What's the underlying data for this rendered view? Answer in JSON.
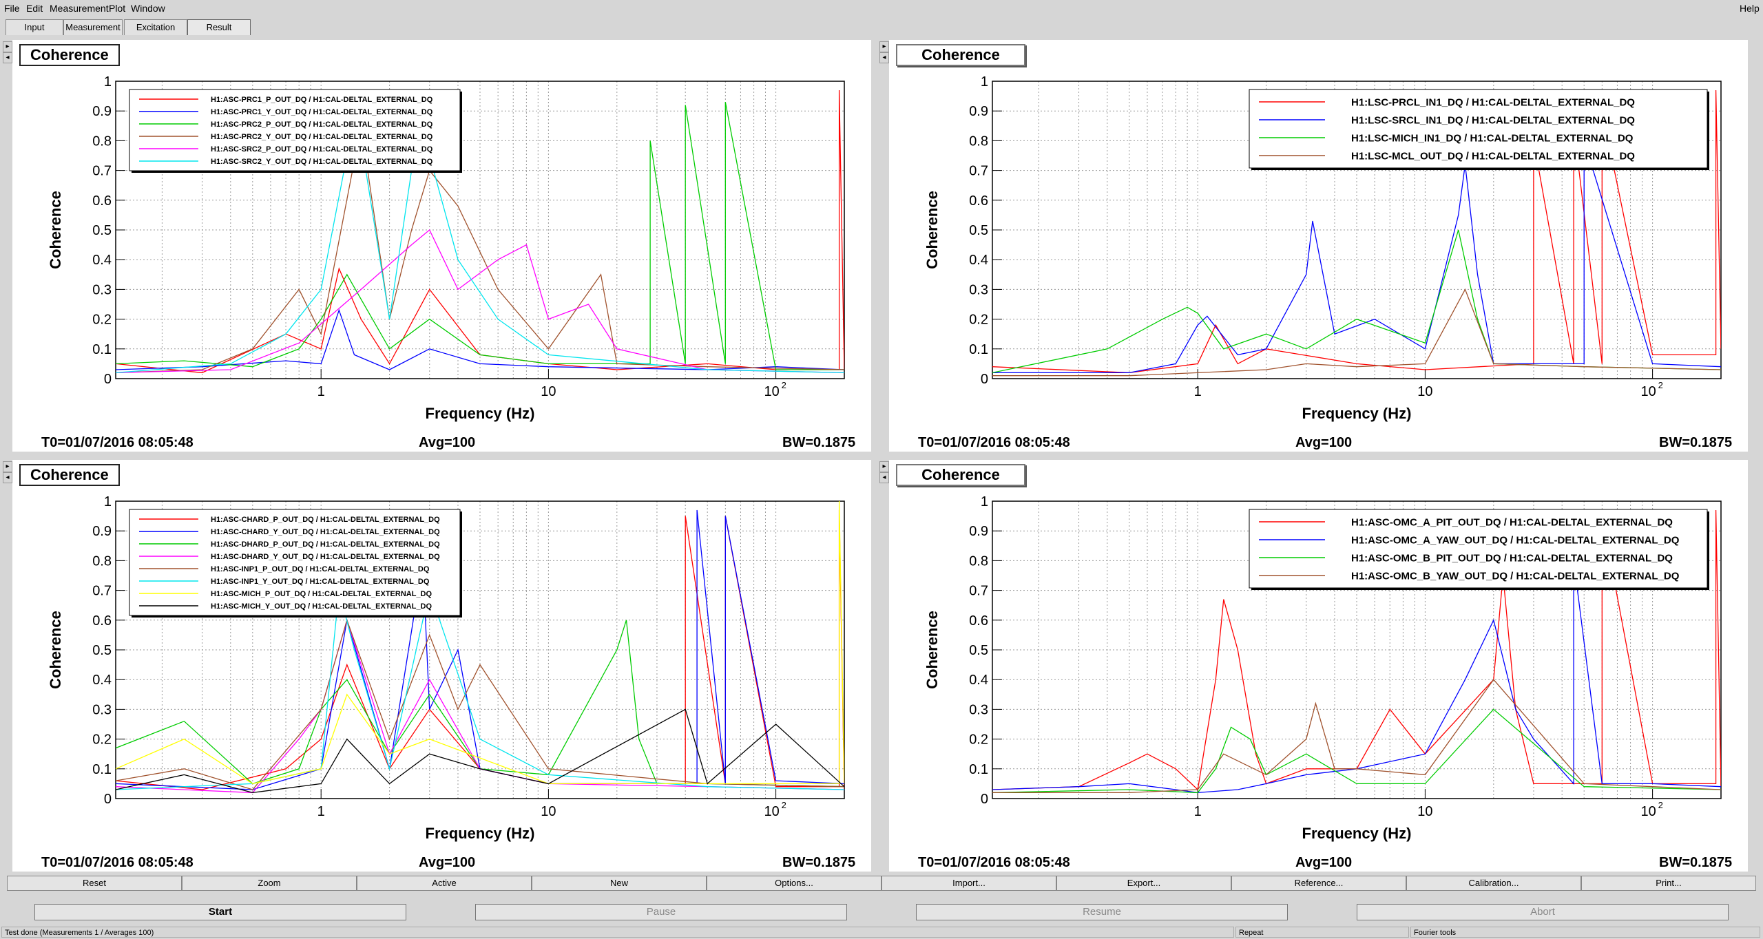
{
  "menu": {
    "file": "File",
    "edit": "Edit",
    "measurement": "Measurement",
    "plot": "Plot",
    "window": "Window",
    "help": "Help"
  },
  "tabs": [
    "Input",
    "Measurement",
    "Excitation",
    "Result"
  ],
  "common": {
    "title": "Coherence",
    "xlabel": "Frequency (Hz)",
    "ylabel": "Coherence",
    "t0": "T0=01/07/2016 08:05:48",
    "avg": "Avg=100",
    "bw": "BW=0.1875"
  },
  "colors": {
    "red": "#ff0000",
    "blue": "#0000ff",
    "green": "#00cc00",
    "brown": "#a0522d",
    "magenta": "#ff00ff",
    "cyan": "#00e5ee",
    "yellow": "#ffff00",
    "black": "#000000"
  },
  "chart_data": [
    {
      "type": "line",
      "title": "Coherence",
      "xlabel": "Frequency (Hz)",
      "ylabel": "Coherence",
      "xscale": "log",
      "xlim": [
        0.125,
        200
      ],
      "ylim": [
        0,
        1
      ],
      "grid": true,
      "legend": "top-left",
      "series": [
        {
          "name": "H1:ASC-PRC1_P_OUT_DQ / H1:CAL-DELTAL_EXTERNAL_DQ",
          "color": "red",
          "x": [
            0.125,
            0.3,
            0.7,
            1.0,
            1.2,
            1.5,
            2.0,
            3.0,
            5.0,
            10,
            20,
            50,
            100,
            190,
            190,
            200
          ],
          "y": [
            0.05,
            0.02,
            0.15,
            0.1,
            0.37,
            0.2,
            0.05,
            0.3,
            0.08,
            0.05,
            0.03,
            0.05,
            0.03,
            0.03,
            0.97,
            0.03
          ]
        },
        {
          "name": "H1:ASC-PRC1_Y_OUT_DQ / H1:CAL-DELTAL_EXTERNAL_DQ",
          "color": "blue",
          "x": [
            0.125,
            0.3,
            0.7,
            1.0,
            1.2,
            1.4,
            2.0,
            3.0,
            5.0,
            10,
            50,
            100,
            200
          ],
          "y": [
            0.03,
            0.04,
            0.06,
            0.05,
            0.23,
            0.08,
            0.03,
            0.1,
            0.05,
            0.04,
            0.03,
            0.04,
            0.03
          ]
        },
        {
          "name": "H1:ASC-PRC2_P_OUT_DQ / H1:CAL-DELTAL_EXTERNAL_DQ",
          "color": "green",
          "x": [
            0.125,
            0.25,
            0.5,
            0.8,
            1.0,
            1.3,
            2.0,
            3.0,
            5.0,
            10,
            28,
            28,
            40,
            40,
            60,
            60,
            100,
            200
          ],
          "y": [
            0.05,
            0.06,
            0.04,
            0.1,
            0.2,
            0.35,
            0.1,
            0.2,
            0.08,
            0.05,
            0.05,
            0.8,
            0.05,
            0.92,
            0.05,
            0.93,
            0.03,
            0.03
          ]
        },
        {
          "name": "H1:ASC-PRC2_Y_OUT_DQ / H1:CAL-DELTAL_EXTERNAL_DQ",
          "color": "brown",
          "x": [
            0.125,
            0.3,
            0.5,
            0.8,
            1.0,
            1.5,
            2.0,
            2.5,
            3.0,
            4.0,
            6.0,
            10,
            17,
            20,
            50,
            200
          ],
          "y": [
            0.02,
            0.03,
            0.1,
            0.3,
            0.15,
            0.85,
            0.2,
            0.5,
            0.7,
            0.58,
            0.3,
            0.1,
            0.35,
            0.05,
            0.04,
            0.03
          ]
        },
        {
          "name": "H1:ASC-SRC2_P_OUT_DQ / H1:CAL-DELTAL_EXTERNAL_DQ",
          "color": "magenta",
          "x": [
            0.125,
            0.4,
            0.8,
            1.5,
            2.5,
            3.0,
            4.0,
            6.0,
            8.0,
            10,
            15,
            20,
            50,
            200
          ],
          "y": [
            0.02,
            0.03,
            0.12,
            0.3,
            0.45,
            0.5,
            0.3,
            0.4,
            0.45,
            0.2,
            0.25,
            0.1,
            0.03,
            0.02
          ]
        },
        {
          "name": "H1:ASC-SRC2_Y_OUT_DQ / H1:CAL-DELTAL_EXTERNAL_DQ",
          "color": "cyan",
          "x": [
            0.125,
            0.4,
            0.7,
            1.0,
            1.3,
            1.5,
            2.0,
            2.5,
            3.0,
            4.0,
            6.0,
            10,
            50,
            200
          ],
          "y": [
            0.02,
            0.05,
            0.15,
            0.3,
            0.75,
            0.8,
            0.2,
            0.7,
            0.75,
            0.4,
            0.2,
            0.08,
            0.03,
            0.02
          ]
        }
      ]
    },
    {
      "type": "line",
      "title": "Coherence",
      "xlabel": "Frequency (Hz)",
      "ylabel": "Coherence",
      "xscale": "log",
      "xlim": [
        0.125,
        200
      ],
      "ylim": [
        0,
        1
      ],
      "grid": true,
      "legend": "top-right",
      "series": [
        {
          "name": "H1:LSC-PRCL_IN1_DQ / H1:CAL-DELTAL_EXTERNAL_DQ",
          "color": "red",
          "x": [
            0.125,
            0.5,
            1.0,
            1.2,
            1.5,
            2.0,
            5.0,
            10,
            30,
            30,
            45,
            45,
            60,
            60,
            100,
            190,
            190,
            200
          ],
          "y": [
            0.04,
            0.02,
            0.05,
            0.18,
            0.05,
            0.1,
            0.05,
            0.03,
            0.05,
            0.8,
            0.05,
            0.85,
            0.05,
            0.9,
            0.08,
            0.08,
            0.97,
            0.1
          ]
        },
        {
          "name": "H1:LSC-SRCL_IN1_DQ / H1:CAL-DELTAL_EXTERNAL_DQ",
          "color": "blue",
          "x": [
            0.125,
            0.5,
            0.8,
            1.0,
            1.1,
            1.5,
            2.0,
            3.0,
            3.2,
            4.0,
            6.0,
            10,
            14,
            15,
            17,
            20,
            50,
            50,
            100,
            200
          ],
          "y": [
            0.02,
            0.02,
            0.05,
            0.18,
            0.21,
            0.08,
            0.1,
            0.35,
            0.53,
            0.15,
            0.2,
            0.1,
            0.55,
            0.72,
            0.35,
            0.05,
            0.05,
            0.8,
            0.05,
            0.04
          ]
        },
        {
          "name": "H1:LSC-MICH_IN1_DQ / H1:CAL-DELTAL_EXTERNAL_DQ",
          "color": "green",
          "x": [
            0.125,
            0.4,
            0.7,
            0.9,
            1.0,
            1.3,
            2.0,
            3.0,
            5.0,
            10,
            14,
            17,
            20,
            50,
            200
          ],
          "y": [
            0.02,
            0.1,
            0.2,
            0.24,
            0.22,
            0.1,
            0.15,
            0.1,
            0.2,
            0.12,
            0.5,
            0.2,
            0.05,
            0.04,
            0.03
          ]
        },
        {
          "name": "H1:LSC-MCL_OUT_DQ / H1:CAL-DELTAL_EXTERNAL_DQ",
          "color": "brown",
          "x": [
            0.125,
            0.5,
            1.0,
            2.0,
            3.0,
            5.0,
            10,
            15,
            20,
            50,
            200
          ],
          "y": [
            0.01,
            0.01,
            0.02,
            0.03,
            0.05,
            0.04,
            0.05,
            0.3,
            0.05,
            0.04,
            0.03
          ]
        }
      ]
    },
    {
      "type": "line",
      "title": "Coherence",
      "xlabel": "Frequency (Hz)",
      "ylabel": "Coherence",
      "xscale": "log",
      "xlim": [
        0.125,
        200
      ],
      "ylim": [
        0,
        1
      ],
      "grid": true,
      "legend": "top-left",
      "series": [
        {
          "name": "H1:ASC-CHARD_P_OUT_DQ / H1:CAL-DELTAL_EXTERNAL_DQ",
          "color": "red",
          "x": [
            0.125,
            0.3,
            0.7,
            1.0,
            1.3,
            2.0,
            3.0,
            5.0,
            10,
            40,
            40,
            60,
            60,
            100,
            190,
            190,
            200
          ],
          "y": [
            0.06,
            0.03,
            0.1,
            0.2,
            0.45,
            0.1,
            0.3,
            0.1,
            0.05,
            0.05,
            0.95,
            0.05,
            0.95,
            0.04,
            0.04,
            0.97,
            0.03
          ]
        },
        {
          "name": "H1:ASC-CHARD_Y_OUT_DQ / H1:CAL-DELTAL_EXTERNAL_DQ",
          "color": "blue",
          "x": [
            0.125,
            0.5,
            1.0,
            1.3,
            2.0,
            2.8,
            3.0,
            4.0,
            5.0,
            10,
            45,
            45,
            60,
            60,
            100,
            200
          ],
          "y": [
            0.05,
            0.03,
            0.1,
            0.6,
            0.1,
            0.8,
            0.3,
            0.5,
            0.1,
            0.05,
            0.05,
            0.97,
            0.05,
            0.95,
            0.06,
            0.05
          ]
        },
        {
          "name": "H1:ASC-DHARD_P_OUT_DQ / H1:CAL-DELTAL_EXTERNAL_DQ",
          "color": "green",
          "x": [
            0.125,
            0.25,
            0.5,
            0.8,
            1.0,
            1.3,
            2.0,
            3.0,
            5.0,
            10,
            20,
            22,
            25,
            30,
            50,
            200
          ],
          "y": [
            0.17,
            0.26,
            0.05,
            0.1,
            0.3,
            0.4,
            0.15,
            0.35,
            0.1,
            0.08,
            0.5,
            0.6,
            0.2,
            0.05,
            0.05,
            0.04
          ]
        },
        {
          "name": "H1:ASC-DHARD_Y_OUT_DQ / H1:CAL-DELTAL_EXTERNAL_DQ",
          "color": "magenta",
          "x": [
            0.125,
            0.5,
            0.8,
            1.0,
            1.3,
            2.0,
            3.0,
            5.0,
            10,
            50,
            200
          ],
          "y": [
            0.04,
            0.02,
            0.2,
            0.3,
            0.6,
            0.15,
            0.4,
            0.1,
            0.05,
            0.04,
            0.03
          ]
        },
        {
          "name": "H1:ASC-INP1_P_OUT_DQ / H1:CAL-DELTAL_EXTERNAL_DQ",
          "color": "brown",
          "x": [
            0.125,
            0.25,
            0.5,
            1.0,
            1.3,
            2.0,
            3.0,
            4.0,
            5.0,
            10,
            50,
            200
          ],
          "y": [
            0.06,
            0.1,
            0.03,
            0.3,
            0.6,
            0.2,
            0.55,
            0.3,
            0.45,
            0.1,
            0.05,
            0.04
          ]
        },
        {
          "name": "H1:ASC-INP1_Y_OUT_DQ / H1:CAL-DELTAL_EXTERNAL_DQ",
          "color": "cyan",
          "x": [
            0.125,
            0.5,
            1.0,
            1.2,
            1.4,
            2.0,
            3.0,
            5.0,
            10,
            50,
            200
          ],
          "y": [
            0.03,
            0.05,
            0.1,
            0.7,
            0.5,
            0.1,
            0.7,
            0.2,
            0.08,
            0.04,
            0.03
          ]
        },
        {
          "name": "H1:ASC-MICH_P_OUT_DQ / H1:CAL-DELTAL_EXTERNAL_DQ",
          "color": "yellow",
          "x": [
            0.125,
            0.25,
            0.5,
            1.0,
            1.3,
            2.0,
            3.0,
            10,
            100,
            190,
            190,
            200
          ],
          "y": [
            0.1,
            0.2,
            0.05,
            0.1,
            0.35,
            0.15,
            0.2,
            0.05,
            0.05,
            0.05,
            1.0,
            0.05
          ]
        },
        {
          "name": "H1:ASC-MICH_Y_OUT_DQ / H1:CAL-DELTAL_EXTERNAL_DQ",
          "color": "black",
          "x": [
            0.125,
            0.25,
            0.5,
            1.0,
            1.3,
            2.0,
            3.0,
            5.0,
            10,
            40,
            50,
            100,
            200
          ],
          "y": [
            0.03,
            0.08,
            0.02,
            0.05,
            0.2,
            0.05,
            0.15,
            0.1,
            0.05,
            0.3,
            0.05,
            0.25,
            0.04
          ]
        }
      ]
    },
    {
      "type": "line",
      "title": "Coherence",
      "xlabel": "Frequency (Hz)",
      "ylabel": "Coherence",
      "xscale": "log",
      "xlim": [
        0.125,
        200
      ],
      "ylim": [
        0,
        1
      ],
      "grid": true,
      "legend": "top-right",
      "series": [
        {
          "name": "H1:ASC-OMC_A_PIT_OUT_DQ / H1:CAL-DELTAL_EXTERNAL_DQ",
          "color": "red",
          "x": [
            0.125,
            0.3,
            0.5,
            0.6,
            0.8,
            1.0,
            1.2,
            1.3,
            1.5,
            1.8,
            2.0,
            3.0,
            5.0,
            7.0,
            10,
            20,
            22,
            25,
            30,
            60,
            60,
            100,
            190,
            190,
            200
          ],
          "y": [
            0.03,
            0.04,
            0.12,
            0.15,
            0.1,
            0.03,
            0.4,
            0.67,
            0.5,
            0.15,
            0.05,
            0.1,
            0.1,
            0.3,
            0.15,
            0.4,
            0.75,
            0.3,
            0.05,
            0.05,
            0.95,
            0.05,
            0.05,
            0.97,
            0.04
          ]
        },
        {
          "name": "H1:ASC-OMC_A_YAW_OUT_DQ / H1:CAL-DELTAL_EXTERNAL_DQ",
          "color": "blue",
          "x": [
            0.125,
            0.3,
            0.5,
            0.8,
            1.0,
            1.5,
            2.0,
            3.0,
            5.0,
            10,
            15,
            20,
            25,
            30,
            45,
            45,
            60,
            100,
            200
          ],
          "y": [
            0.03,
            0.04,
            0.05,
            0.03,
            0.02,
            0.03,
            0.05,
            0.08,
            0.1,
            0.15,
            0.4,
            0.6,
            0.3,
            0.2,
            0.05,
            0.8,
            0.05,
            0.05,
            0.04
          ]
        },
        {
          "name": "H1:ASC-OMC_B_PIT_OUT_DQ / H1:CAL-DELTAL_EXTERNAL_DQ",
          "color": "green",
          "x": [
            0.125,
            0.5,
            1.0,
            1.2,
            1.4,
            1.7,
            2.0,
            3.0,
            5.0,
            10,
            20,
            50,
            200
          ],
          "y": [
            0.02,
            0.03,
            0.02,
            0.1,
            0.24,
            0.2,
            0.08,
            0.15,
            0.05,
            0.05,
            0.3,
            0.04,
            0.03
          ]
        },
        {
          "name": "H1:ASC-OMC_B_YAW_OUT_DQ / H1:CAL-DELTAL_EXTERNAL_DQ",
          "color": "brown",
          "x": [
            0.125,
            0.5,
            1.0,
            1.3,
            2.0,
            3.0,
            3.3,
            4.0,
            5.0,
            10,
            20,
            50,
            200
          ],
          "y": [
            0.02,
            0.02,
            0.03,
            0.15,
            0.08,
            0.2,
            0.32,
            0.1,
            0.1,
            0.08,
            0.4,
            0.05,
            0.03
          ]
        }
      ]
    }
  ],
  "buttons": [
    "Reset",
    "Zoom",
    "Active",
    "New",
    "Options...",
    "Import...",
    "Export...",
    "Reference...",
    "Calibration...",
    "Print..."
  ],
  "controls": [
    "Start",
    "Pause",
    "Resume",
    "Abort"
  ],
  "status": {
    "message": "Test done (Measurements 1 / Averages 100)",
    "repeat": "Repeat",
    "fourier": "Fourier tools"
  }
}
